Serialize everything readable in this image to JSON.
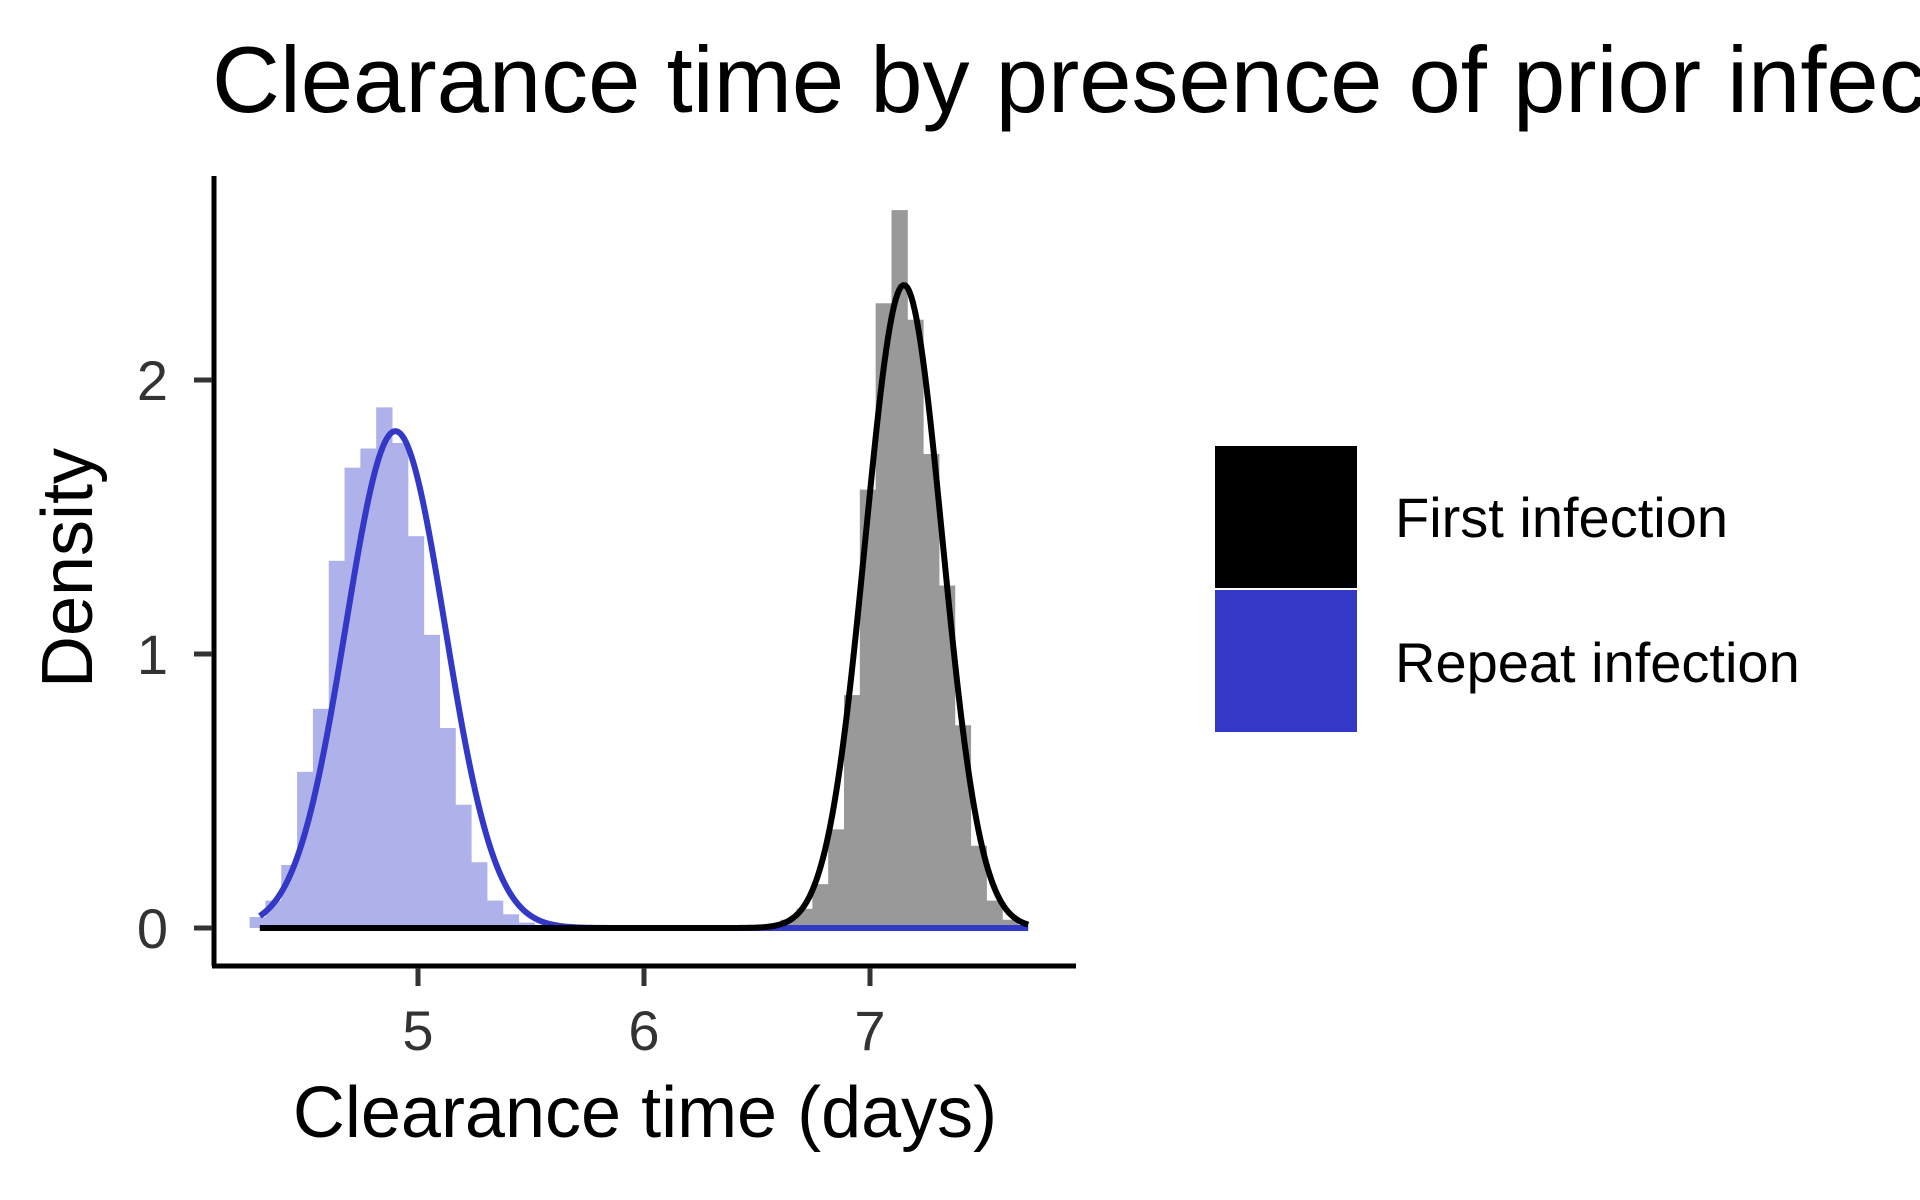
{
  "chart_data": {
    "type": "histogram+density",
    "title": "Clearance time by presence of prior infection",
    "xlabel": "Clearance time (days)",
    "ylabel": "Density",
    "xlim": [
      4.2,
      7.9
    ],
    "ylim": [
      0,
      2.7
    ],
    "x_ticks": [
      5,
      6,
      7
    ],
    "y_ticks": [
      0,
      1,
      2
    ],
    "grid": false,
    "legend_position": "right",
    "bin_width": 0.07,
    "series": [
      {
        "name": "First infection",
        "fill_color": "#999999",
        "line_color": "#000000",
        "legend_color": "#000000",
        "density_curve": {
          "mean": 7.15,
          "sd": 0.17,
          "x_range": [
            4.3,
            7.7
          ]
        },
        "histogram": [
          {
            "x": 6.57,
            "density": 0.01
          },
          {
            "x": 6.64,
            "density": 0.03
          },
          {
            "x": 6.71,
            "density": 0.07
          },
          {
            "x": 6.78,
            "density": 0.16
          },
          {
            "x": 6.85,
            "density": 0.36
          },
          {
            "x": 6.92,
            "density": 0.85
          },
          {
            "x": 6.99,
            "density": 1.6
          },
          {
            "x": 7.06,
            "density": 2.28
          },
          {
            "x": 7.13,
            "density": 2.62
          },
          {
            "x": 7.2,
            "density": 2.22
          },
          {
            "x": 7.27,
            "density": 1.73
          },
          {
            "x": 7.34,
            "density": 1.25
          },
          {
            "x": 7.41,
            "density": 0.74
          },
          {
            "x": 7.48,
            "density": 0.3
          },
          {
            "x": 7.55,
            "density": 0.1
          },
          {
            "x": 7.62,
            "density": 0.03
          }
        ]
      },
      {
        "name": "Repeat infection",
        "fill_color": "#aeb1ea",
        "line_color": "#3338c7",
        "legend_color": "#3338c7",
        "density_curve": {
          "mean": 4.9,
          "sd": 0.22,
          "x_range": [
            4.3,
            7.7
          ]
        },
        "histogram": [
          {
            "x": 4.29,
            "density": 0.04
          },
          {
            "x": 4.36,
            "density": 0.1
          },
          {
            "x": 4.43,
            "density": 0.23
          },
          {
            "x": 4.5,
            "density": 0.57
          },
          {
            "x": 4.57,
            "density": 0.8
          },
          {
            "x": 4.64,
            "density": 1.34
          },
          {
            "x": 4.71,
            "density": 1.68
          },
          {
            "x": 4.78,
            "density": 1.75
          },
          {
            "x": 4.85,
            "density": 1.9
          },
          {
            "x": 4.92,
            "density": 1.77
          },
          {
            "x": 4.99,
            "density": 1.43
          },
          {
            "x": 5.06,
            "density": 1.07
          },
          {
            "x": 5.13,
            "density": 0.73
          },
          {
            "x": 5.2,
            "density": 0.45
          },
          {
            "x": 5.27,
            "density": 0.24
          },
          {
            "x": 5.34,
            "density": 0.1
          },
          {
            "x": 5.41,
            "density": 0.05
          },
          {
            "x": 5.48,
            "density": 0.02
          }
        ]
      }
    ]
  }
}
